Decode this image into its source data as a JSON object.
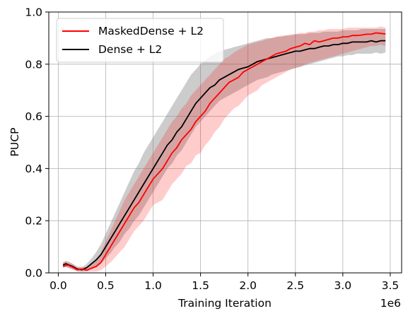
{
  "chart_data": {
    "type": "line",
    "title": "",
    "xlabel": "Training Iteration",
    "ylabel": "PUCP",
    "x_offset_label": "1e6",
    "xlim": [
      -0.1,
      3.62
    ],
    "ylim": [
      0.0,
      1.0
    ],
    "grid": true,
    "legend_placement": "upper left",
    "x_ticks": [
      0.0,
      0.5,
      1.0,
      1.5,
      2.0,
      2.5,
      3.0,
      3.5
    ],
    "x_tick_labels": [
      "0.0",
      "0.5",
      "1.0",
      "1.5",
      "2.0",
      "2.5",
      "3.0",
      "3.5"
    ],
    "y_ticks": [
      0.0,
      0.2,
      0.4,
      0.6,
      0.8,
      1.0
    ],
    "y_tick_labels": [
      "0.0",
      "0.2",
      "0.4",
      "0.6",
      "0.8",
      "1.0"
    ],
    "series": [
      {
        "name": "MaskedDense + L2",
        "color": "#ff0000",
        "band_color": "#ff0000",
        "x": [
          0.05,
          0.08,
          0.1,
          0.15,
          0.2,
          0.25,
          0.3,
          0.35,
          0.4,
          0.45,
          0.5,
          0.55,
          0.6,
          0.65,
          0.7,
          0.75,
          0.8,
          0.85,
          0.9,
          0.95,
          1.0,
          1.05,
          1.1,
          1.15,
          1.2,
          1.25,
          1.3,
          1.35,
          1.4,
          1.45,
          1.5,
          1.55,
          1.6,
          1.65,
          1.7,
          1.75,
          1.8,
          1.85,
          1.9,
          1.95,
          2.0,
          2.05,
          2.1,
          2.15,
          2.2,
          2.25,
          2.3,
          2.35,
          2.4,
          2.45,
          2.5,
          2.55,
          2.6,
          2.65,
          2.7,
          2.75,
          2.8,
          2.85,
          2.9,
          2.95,
          3.0,
          3.05,
          3.1,
          3.15,
          3.2,
          3.25,
          3.3,
          3.35,
          3.4,
          3.45
        ],
        "y": [
          0.025,
          0.028,
          0.03,
          0.022,
          0.012,
          0.015,
          0.01,
          0.018,
          0.025,
          0.04,
          0.07,
          0.1,
          0.13,
          0.16,
          0.19,
          0.22,
          0.25,
          0.27,
          0.3,
          0.33,
          0.36,
          0.38,
          0.4,
          0.43,
          0.46,
          0.48,
          0.51,
          0.53,
          0.55,
          0.58,
          0.6,
          0.62,
          0.65,
          0.67,
          0.69,
          0.71,
          0.73,
          0.74,
          0.75,
          0.77,
          0.78,
          0.79,
          0.8,
          0.81,
          0.82,
          0.83,
          0.84,
          0.845,
          0.85,
          0.86,
          0.865,
          0.87,
          0.88,
          0.875,
          0.89,
          0.885,
          0.89,
          0.895,
          0.9,
          0.9,
          0.905,
          0.905,
          0.91,
          0.91,
          0.912,
          0.915,
          0.915,
          0.92,
          0.918,
          0.916
        ],
        "lower": [
          0.02,
          0.022,
          0.02,
          0.012,
          0.005,
          0.005,
          0.004,
          0.005,
          0.005,
          0.01,
          0.025,
          0.04,
          0.06,
          0.08,
          0.1,
          0.13,
          0.16,
          0.18,
          0.2,
          0.23,
          0.26,
          0.27,
          0.28,
          0.31,
          0.34,
          0.36,
          0.38,
          0.41,
          0.42,
          0.45,
          0.46,
          0.49,
          0.51,
          0.54,
          0.56,
          0.59,
          0.61,
          0.63,
          0.64,
          0.66,
          0.68,
          0.69,
          0.7,
          0.72,
          0.73,
          0.74,
          0.75,
          0.76,
          0.77,
          0.78,
          0.785,
          0.79,
          0.8,
          0.805,
          0.81,
          0.815,
          0.82,
          0.825,
          0.83,
          0.835,
          0.84,
          0.845,
          0.85,
          0.855,
          0.86,
          0.865,
          0.87,
          0.87,
          0.875,
          0.87
        ],
        "upper": [
          0.04,
          0.045,
          0.04,
          0.035,
          0.02,
          0.025,
          0.02,
          0.035,
          0.05,
          0.08,
          0.12,
          0.16,
          0.2,
          0.24,
          0.28,
          0.31,
          0.34,
          0.37,
          0.4,
          0.43,
          0.46,
          0.49,
          0.52,
          0.55,
          0.58,
          0.6,
          0.63,
          0.65,
          0.68,
          0.7,
          0.72,
          0.74,
          0.76,
          0.78,
          0.8,
          0.82,
          0.83,
          0.845,
          0.855,
          0.865,
          0.875,
          0.88,
          0.885,
          0.89,
          0.895,
          0.9,
          0.905,
          0.91,
          0.91,
          0.915,
          0.915,
          0.92,
          0.92,
          0.925,
          0.925,
          0.93,
          0.93,
          0.935,
          0.935,
          0.935,
          0.935,
          0.94,
          0.94,
          0.94,
          0.94,
          0.94,
          0.94,
          0.94,
          0.945,
          0.94
        ]
      },
      {
        "name": "Dense + L2",
        "color": "#000000",
        "band_color": "#808080",
        "x": [
          0.05,
          0.08,
          0.1,
          0.15,
          0.2,
          0.25,
          0.3,
          0.35,
          0.4,
          0.45,
          0.5,
          0.55,
          0.6,
          0.65,
          0.7,
          0.75,
          0.8,
          0.85,
          0.9,
          0.95,
          1.0,
          1.05,
          1.1,
          1.15,
          1.2,
          1.25,
          1.3,
          1.35,
          1.4,
          1.45,
          1.5,
          1.55,
          1.6,
          1.65,
          1.7,
          1.75,
          1.8,
          1.85,
          1.9,
          1.95,
          2.0,
          2.05,
          2.1,
          2.15,
          2.2,
          2.25,
          2.3,
          2.35,
          2.4,
          2.45,
          2.5,
          2.55,
          2.6,
          2.65,
          2.7,
          2.75,
          2.8,
          2.85,
          2.9,
          2.95,
          3.0,
          3.05,
          3.1,
          3.15,
          3.2,
          3.25,
          3.3,
          3.35,
          3.4,
          3.45
        ],
        "y": [
          0.03,
          0.035,
          0.032,
          0.025,
          0.015,
          0.012,
          0.02,
          0.035,
          0.05,
          0.07,
          0.1,
          0.13,
          0.16,
          0.19,
          0.22,
          0.25,
          0.28,
          0.31,
          0.34,
          0.37,
          0.4,
          0.43,
          0.46,
          0.49,
          0.51,
          0.54,
          0.56,
          0.59,
          0.62,
          0.65,
          0.67,
          0.69,
          0.71,
          0.72,
          0.74,
          0.75,
          0.76,
          0.77,
          0.78,
          0.785,
          0.79,
          0.8,
          0.81,
          0.815,
          0.82,
          0.825,
          0.83,
          0.835,
          0.84,
          0.845,
          0.85,
          0.85,
          0.855,
          0.86,
          0.86,
          0.865,
          0.87,
          0.87,
          0.875,
          0.875,
          0.88,
          0.88,
          0.885,
          0.885,
          0.885,
          0.885,
          0.89,
          0.885,
          0.89,
          0.89
        ],
        "lower": [
          0.02,
          0.025,
          0.02,
          0.015,
          0.008,
          0.005,
          0.008,
          0.015,
          0.02,
          0.035,
          0.055,
          0.075,
          0.1,
          0.12,
          0.15,
          0.17,
          0.2,
          0.22,
          0.25,
          0.28,
          0.31,
          0.34,
          0.37,
          0.4,
          0.42,
          0.45,
          0.47,
          0.5,
          0.53,
          0.56,
          0.58,
          0.6,
          0.62,
          0.64,
          0.66,
          0.67,
          0.68,
          0.69,
          0.7,
          0.71,
          0.72,
          0.73,
          0.74,
          0.745,
          0.75,
          0.76,
          0.765,
          0.77,
          0.775,
          0.78,
          0.785,
          0.79,
          0.795,
          0.8,
          0.805,
          0.81,
          0.815,
          0.82,
          0.825,
          0.83,
          0.83,
          0.835,
          0.835,
          0.84,
          0.84,
          0.84,
          0.84,
          0.845,
          0.84,
          0.845
        ],
        "upper": [
          0.04,
          0.045,
          0.045,
          0.035,
          0.025,
          0.02,
          0.035,
          0.055,
          0.08,
          0.11,
          0.15,
          0.19,
          0.23,
          0.27,
          0.31,
          0.35,
          0.39,
          0.42,
          0.46,
          0.49,
          0.52,
          0.55,
          0.58,
          0.61,
          0.64,
          0.67,
          0.7,
          0.73,
          0.76,
          0.78,
          0.8,
          0.815,
          0.83,
          0.84,
          0.85,
          0.855,
          0.86,
          0.865,
          0.87,
          0.875,
          0.88,
          0.885,
          0.89,
          0.895,
          0.9,
          0.9,
          0.905,
          0.905,
          0.91,
          0.91,
          0.915,
          0.915,
          0.915,
          0.92,
          0.92,
          0.92,
          0.925,
          0.925,
          0.925,
          0.925,
          0.93,
          0.93,
          0.93,
          0.93,
          0.935,
          0.935,
          0.935,
          0.935,
          0.935,
          0.935
        ]
      }
    ]
  }
}
